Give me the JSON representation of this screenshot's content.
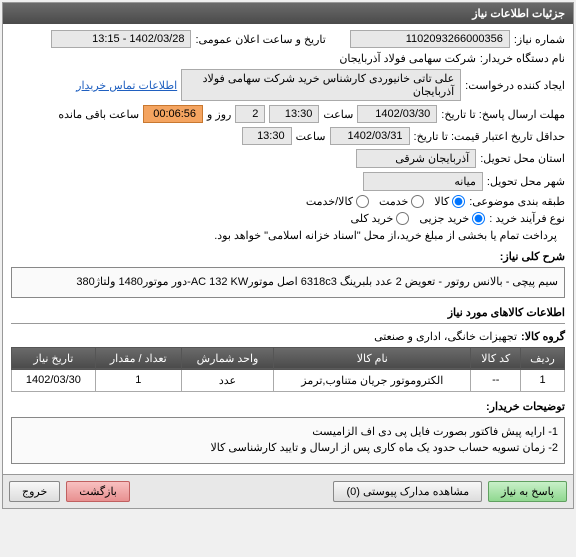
{
  "panel": {
    "title": "جزئیات اطلاعات نیاز"
  },
  "fields": {
    "need_no_label": "شماره نیاز:",
    "need_no": "1102093266000356",
    "public_announce_label": "تاریخ و ساعت اعلان عمومی:",
    "public_announce": "1402/03/28 - 13:15",
    "buyer_org_label": "نام دستگاه خریدار:",
    "buyer_org": "شرکت سهامی فولاد آذربایجان",
    "requester_label": "ایجاد کننده درخواست:",
    "requester": "علی تاتی خانیوردی کارشناس خرید شرکت سهامی فولاد آذربایجان",
    "contact_link": "اطلاعات تماس خریدار",
    "deadline_label": "مهلت ارسال پاسخ: تا تاریخ:",
    "deadline_date": "1402/03/30",
    "time_label": "ساعت",
    "deadline_time": "13:30",
    "days_label": "روز و",
    "days_value": "2",
    "countdown": "00:06:56",
    "remaining_label": "ساعت باقی مانده",
    "min_valid_label": "حداقل تاریخ اعتبار قیمت: تا تاریخ:",
    "min_valid_date": "1402/03/31",
    "min_valid_time": "13:30",
    "province_label": "استان محل تحویل:",
    "province": "آذربایجان شرقی",
    "city_label": "شهر محل تحویل:",
    "city": "میانه",
    "budget_class_label": "طبقه بندی موضوعی:",
    "buy_process_label": "نوع فرآیند خرید :",
    "payment_note": "پرداخت تمام یا بخشی از مبلغ خرید،از محل \"اسناد خزانه اسلامی\" خواهد بود."
  },
  "budget_options": [
    {
      "label": "کالا",
      "checked": true
    },
    {
      "label": "خدمت",
      "checked": false
    },
    {
      "label": "کالا/خدمت",
      "checked": false
    }
  ],
  "buy_options": [
    {
      "label": "خرید جزیی",
      "checked": true
    },
    {
      "label": "خرید کلی",
      "checked": false
    }
  ],
  "need_summary": {
    "label": "شرح کلی نیاز:",
    "text": "سیم پیچی - بالانس روتور - تعویض 2 عدد بلبرینگ 6318c3 اصل موتورAC 132 KW-دور موتور1480 ولتاژ380"
  },
  "items_section": {
    "title": "اطلاعات کالاهای مورد نیاز",
    "group_label": "گروه کالا:",
    "group_value": "تجهیزات خانگی، اداری و صنعتی"
  },
  "table": {
    "columns": [
      "ردیف",
      "کد کالا",
      "نام کالا",
      "واحد شمارش",
      "تعداد / مقدار",
      "تاریخ نیاز"
    ],
    "rows": [
      [
        "1",
        "--",
        "الکتروموتور جریان متناوب,ترمز",
        "عدد",
        "1",
        "1402/03/30"
      ]
    ]
  },
  "buyer_notes": {
    "label": "توضیحات خریدار:",
    "text": "1- ارایه  پیش  فاکتور بصورت فایل پی دی اف  الزامیست\n2- زمان تسویه حساب حدود یک ماه کاری پس از ارسال و تایید کارشناسی کالا"
  },
  "footer": {
    "respond": "پاسخ به نیاز",
    "attachments": "مشاهده مدارک پیوستی (0)",
    "back": "بازگشت",
    "exit": "خروج"
  },
  "colors": {
    "header_bg": "#555555",
    "field_bg": "#e8e8e8",
    "orange": "#f4a460"
  }
}
